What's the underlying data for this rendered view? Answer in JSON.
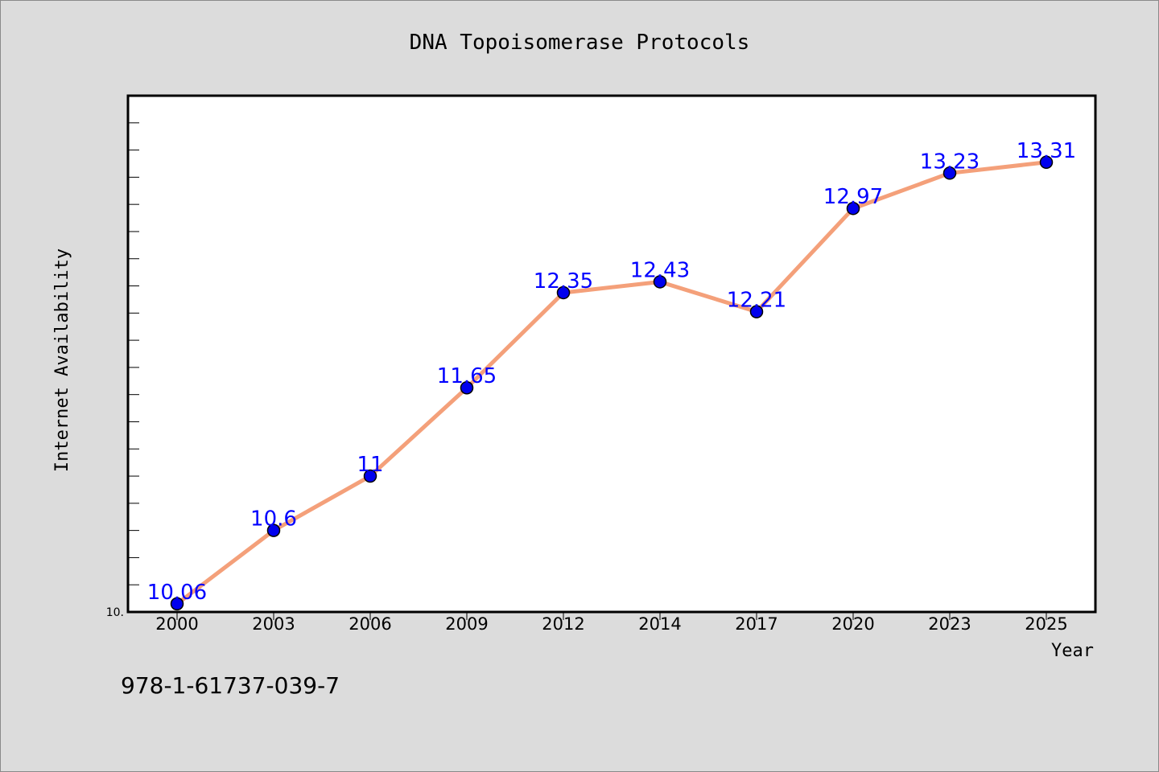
{
  "footer_text": "978-1-61737-039-7",
  "chart_data": {
    "type": "line",
    "title": "DNA Topoisomerase Protocols",
    "xlabel": "Year",
    "ylabel": "Internet Availability",
    "y_origin_label": "10.",
    "categories": [
      "2000",
      "2003",
      "2006",
      "2009",
      "2012",
      "2014",
      "2017",
      "2020",
      "2023",
      "2025"
    ],
    "series": [
      {
        "values": [
          10.06,
          10.6,
          11,
          11.65,
          12.35,
          12.43,
          12.21,
          12.97,
          13.23,
          13.31
        ],
        "labels": [
          "10.06",
          "10.6",
          "11",
          "11.65",
          "12.35",
          "12.43",
          "12.21",
          "12.97",
          "13.23",
          "13.31"
        ]
      }
    ],
    "ylim": [
      10.0,
      13.8
    ],
    "grid": false,
    "legend": "none",
    "colors": {
      "line": "#f4a07a",
      "marker": "#0000ee",
      "label": "#0000ff",
      "plot_bg": "#ffffff",
      "page_bg": "#dcdcdc"
    }
  }
}
